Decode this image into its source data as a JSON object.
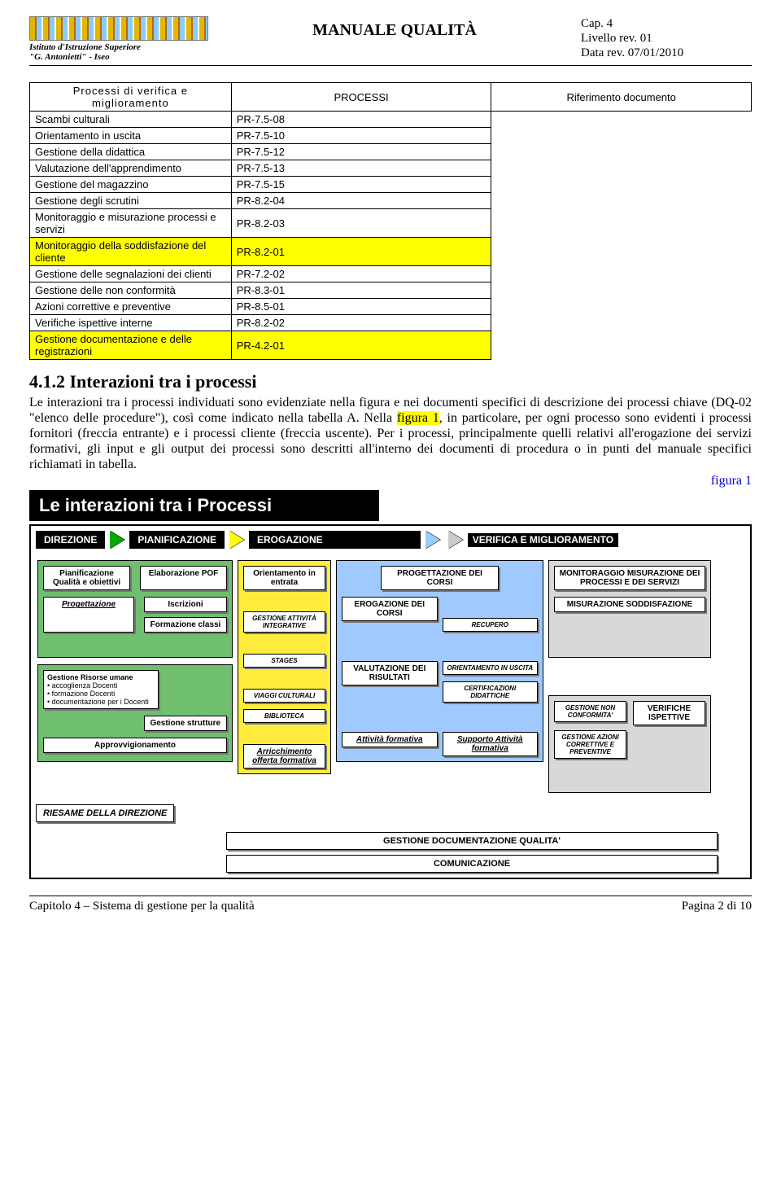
{
  "header": {
    "org_line1": "Istituto d'Istruzione Superiore",
    "org_line2": "\"G. Antonietti\" - Iseo",
    "title": "MANUALE QUALITÀ",
    "cap": "Cap. 4",
    "livello": "Livello rev. 01",
    "data": "Data rev. 07/01/2010"
  },
  "table": {
    "col1_header": "",
    "col2_header": "PROCESSI",
    "col3_header": "Riferimento documento",
    "group_label": "Processi di verifica e miglioramento",
    "rows": [
      {
        "p": "Scambi culturali",
        "r": "PR-7.5-08",
        "hl": false
      },
      {
        "p": "Orientamento in uscita",
        "r": "PR-7.5-10",
        "hl": false
      },
      {
        "p": "Gestione della didattica",
        "r": "PR-7.5-12",
        "hl": false
      },
      {
        "p": "Valutazione dell'apprendimento",
        "r": "PR-7.5-13",
        "hl": false
      },
      {
        "p": "Gestione del magazzino",
        "r": "PR-7.5-15",
        "hl": false
      },
      {
        "p": "Gestione degli scrutini",
        "r": "PR-8.2-04",
        "hl": false
      },
      {
        "p": "Monitoraggio e misurazione processi e servizi",
        "r": "PR-8.2-03",
        "hl": false
      },
      {
        "p": "Monitoraggio della soddisfazione del cliente",
        "r": "PR-8.2-01",
        "hl": true
      },
      {
        "p": "Gestione delle segnalazioni dei clienti",
        "r": "PR-7.2-02",
        "hl": false
      },
      {
        "p": "Gestione delle non conformità",
        "r": "PR-8.3-01",
        "hl": false
      },
      {
        "p": "Azioni correttive e preventive",
        "r": "PR-8.5-01",
        "hl": false
      },
      {
        "p": "Verifiche ispettive interne",
        "r": "PR-8.2-02",
        "hl": false
      },
      {
        "p": "Gestione documentazione e delle registrazioni",
        "r": "PR-4.2-01",
        "hl": true
      }
    ]
  },
  "section": {
    "heading": "4.1.2 Interazioni tra i processi",
    "para1a": "Le interazioni tra i processi individuati sono evidenziate nella figura e nei documenti specifici di descrizione dei processi chiave (DQ-02 \"elenco delle procedure\"), così come indicato nella tabella A. Nella ",
    "para1_hl": "figura 1",
    "para1b": ", in particolare, per ogni processo sono evidenti i processi fornitori (freccia entrante) e i processi cliente (freccia uscente). Per i processi, principalmente quelli relativi all'erogazione dei servizi formativi, gli input e gli output dei processi sono descritti all'interno dei documenti di procedura o in punti del manuale specifici richiamati in tabella.",
    "fig_label": "figura 1"
  },
  "diagram": {
    "title": "Le interazioni tra i Processi",
    "topbar": {
      "direzione": "DIREZIONE",
      "pianificazione": "PIANIFICAZIONE",
      "erogazione": "EROGAZIONE",
      "verifica": "VERIFICA E MIGLIORAMENTO"
    },
    "green": {
      "pianif": "Pianificazione Qualità e obiettivi",
      "proget": "Progettazione",
      "elab_pof": "Elaborazione POF",
      "iscr": "Iscrizioni",
      "form_classi": "Formazione classi",
      "risorse_title": "Gestione Risorse umane",
      "risorse_items": [
        "accoglienza Docenti",
        "formazione Docenti",
        "documentazione per i Docenti"
      ],
      "strutture": "Gestione strutture",
      "approvv": "Approvvigionamento"
    },
    "yellow": {
      "orient_in": "Orientamento in entrata",
      "gest_int": "GESTIONE ATTIVITÀ INTEGRATIVE",
      "stages": "STAGES",
      "viaggi": "VIAGGI CULTURALI",
      "biblioteca": "BIBLIOTECA",
      "arricch": "Arricchimento offerta formativa"
    },
    "blue": {
      "prog_corsi": "PROGETTAZIONE DEI CORSI",
      "erog_corsi": "EROGAZIONE DEI CORSI",
      "recupero": "RECUPERO",
      "valut": "VALUTAZIONE DEI RISULTATI",
      "orient_out": "ORIENTAMENTO IN USCITA",
      "cert": "CERTIFICAZIONI DIDATTICHE",
      "attiv": "Attività formativa",
      "supporto": "Supporto Attività formativa"
    },
    "gray": {
      "monit": "MONITORAGGIO MISURAZIONE DEI PROCESSI E DEI SERVIZI",
      "mis_sod": "MISURAZIONE SODDISFAZIONE",
      "gest_nc": "GESTIONE NON CONFORMITA'",
      "ver_isp": "VERIFICHE ISPETTIVE",
      "az_corr": "GESTIONE AZIONI CORRETTIVE E PREVENTIVE"
    },
    "riesame": "RIESAME DELLA DIREZIONE",
    "gest_doc": "GESTIONE DOCUMENTAZIONE QUALITA'",
    "comun": "COMUNICAZIONE"
  },
  "footer": {
    "left": "Capitolo 4 – Sistema di gestione per la qualità",
    "right": "Pagina 2 di 10"
  }
}
